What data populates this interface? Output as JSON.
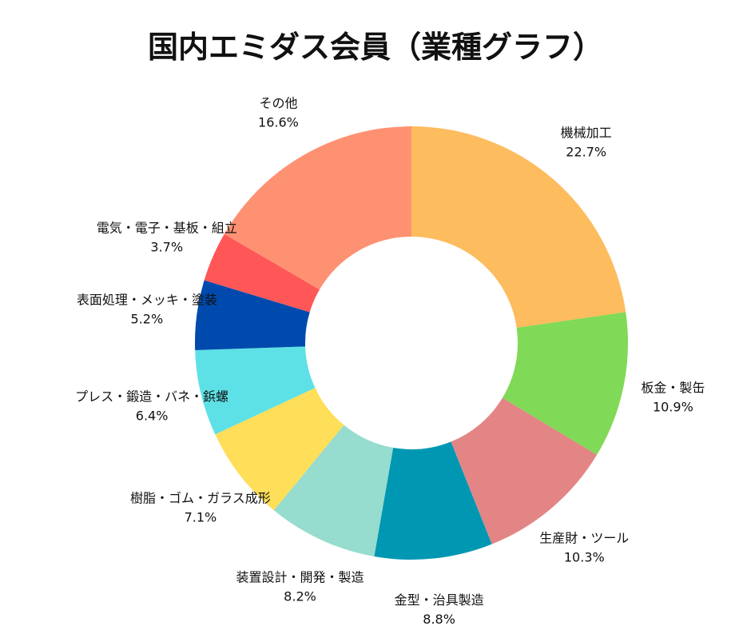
{
  "chart_data": {
    "type": "pie",
    "title": "国内エミダス会員（業種グラフ）",
    "legend": "none",
    "slices": [
      {
        "label": "機械加工",
        "value": 22.7,
        "pct_label": "22.7%",
        "color": "#FDBC5E"
      },
      {
        "label": "板金・製缶",
        "value": 10.9,
        "pct_label": "10.9%",
        "color": "#80D957"
      },
      {
        "label": "生産財・ツール",
        "value": 10.3,
        "pct_label": "10.3%",
        "color": "#E38585"
      },
      {
        "label": "金型・治具製造",
        "value": 8.8,
        "pct_label": "8.8%",
        "color": "#0097B2"
      },
      {
        "label": "装置設計・開発・製造",
        "value": 8.2,
        "pct_label": "8.2%",
        "color": "#96DCCF"
      },
      {
        "label": "樹脂・ゴム・ガラス成形",
        "value": 7.1,
        "pct_label": "7.1%",
        "color": "#FFDE59"
      },
      {
        "label": "プレス・鍛造・バネ・鋲螺",
        "value": 6.4,
        "pct_label": "6.4%",
        "color": "#5DE1E6"
      },
      {
        "label": "表面処理・メッキ・塗装",
        "value": 5.2,
        "pct_label": "5.2%",
        "color": "#004AAD"
      },
      {
        "label": "電気・電子・基板・組立",
        "value": 3.7,
        "pct_label": "3.7%",
        "color": "#FF5757"
      },
      {
        "label": "その他",
        "value": 16.6,
        "pct_label": "16.6%",
        "color": "#FF9173"
      }
    ]
  }
}
